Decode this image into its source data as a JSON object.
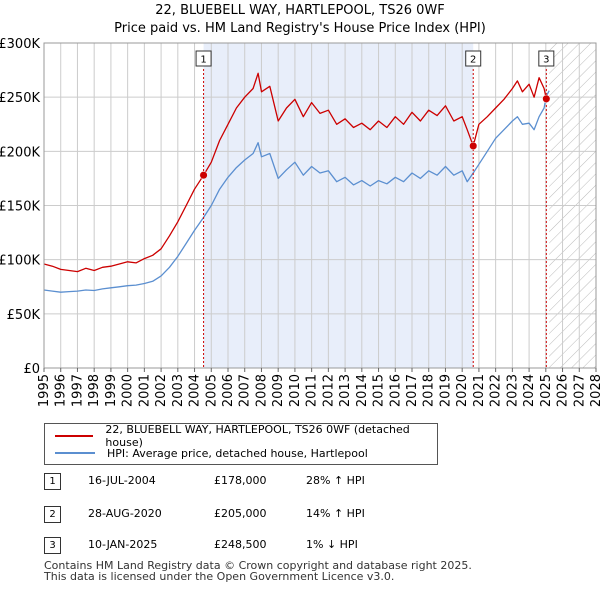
{
  "title": "22, BLUEBELL WAY, HARTLEPOOL, TS26 0WF",
  "subtitle": "Price paid vs. HM Land Registry's House Price Index (HPI)",
  "colors": {
    "property_line": "#cc0000",
    "hpi_line": "#5b8fd0",
    "shade": "#e8eefa",
    "future_hatch": "#bbbbbb",
    "marker_line": "#cc0000",
    "grid": "#cccccc"
  },
  "chart_data": {
    "type": "line",
    "xlim": [
      1995,
      2028
    ],
    "ylim": [
      0,
      300000
    ],
    "x_ticks": [
      "1995",
      "1996",
      "1997",
      "1998",
      "1999",
      "2000",
      "2001",
      "2002",
      "2003",
      "2004",
      "2005",
      "2006",
      "2007",
      "2008",
      "2009",
      "2010",
      "2011",
      "2012",
      "2013",
      "2014",
      "2015",
      "2016",
      "2017",
      "2018",
      "2019",
      "2020",
      "2021",
      "2022",
      "2023",
      "2024",
      "2025",
      "2026",
      "2027",
      "2028"
    ],
    "y_ticks": [
      "£0",
      "£50K",
      "£100K",
      "£150K",
      "£200K",
      "£250K",
      "£300K"
    ],
    "y_tick_values": [
      0,
      50000,
      100000,
      150000,
      200000,
      250000,
      300000
    ],
    "shaded_region": [
      2004.54,
      2020.66
    ],
    "future_from": 2025.2,
    "series": [
      {
        "name": "22, BLUEBELL WAY, HARTLEPOOL, TS26 0WF (detached house)",
        "color": "#cc0000",
        "x": [
          1995,
          1995.5,
          1996,
          1996.5,
          1997,
          1997.5,
          1998,
          1998.5,
          1999,
          1999.5,
          2000,
          2000.5,
          2001,
          2001.5,
          2002,
          2002.5,
          2003,
          2003.5,
          2004,
          2004.54,
          2005,
          2005.5,
          2006,
          2006.5,
          2007,
          2007.5,
          2007.8,
          2008,
          2008.5,
          2009,
          2009.5,
          2010,
          2010.5,
          2011,
          2011.5,
          2012,
          2012.5,
          2013,
          2013.5,
          2014,
          2014.5,
          2015,
          2015.5,
          2016,
          2016.5,
          2017,
          2017.5,
          2018,
          2018.5,
          2019,
          2019.5,
          2020,
          2020.3,
          2020.66,
          2021,
          2021.5,
          2022,
          2022.5,
          2023,
          2023.3,
          2023.6,
          2024,
          2024.3,
          2024.6,
          2024.9,
          2025.03,
          2025.2
        ],
        "y": [
          96000,
          94000,
          91000,
          90000,
          89000,
          92000,
          90000,
          93000,
          94000,
          96000,
          98000,
          97000,
          101000,
          104000,
          110000,
          122000,
          135000,
          150000,
          165000,
          178000,
          190000,
          210000,
          225000,
          240000,
          250000,
          258000,
          272000,
          255000,
          260000,
          228000,
          240000,
          248000,
          232000,
          245000,
          235000,
          238000,
          225000,
          230000,
          222000,
          226000,
          220000,
          228000,
          222000,
          232000,
          225000,
          236000,
          228000,
          238000,
          233000,
          242000,
          228000,
          232000,
          220000,
          205000,
          225000,
          232000,
          240000,
          248000,
          258000,
          265000,
          255000,
          262000,
          250000,
          268000,
          258000,
          248500,
          247000
        ]
      },
      {
        "name": "HPI: Average price, detached house, Hartlepool",
        "color": "#5b8fd0",
        "x": [
          1995,
          1995.5,
          1996,
          1996.5,
          1997,
          1997.5,
          1998,
          1998.5,
          1999,
          1999.5,
          2000,
          2000.5,
          2001,
          2001.5,
          2002,
          2002.5,
          2003,
          2003.5,
          2004,
          2004.54,
          2005,
          2005.5,
          2006,
          2006.5,
          2007,
          2007.5,
          2007.8,
          2008,
          2008.5,
          2009,
          2009.5,
          2010,
          2010.5,
          2011,
          2011.5,
          2012,
          2012.5,
          2013,
          2013.5,
          2014,
          2014.5,
          2015,
          2015.5,
          2016,
          2016.5,
          2017,
          2017.5,
          2018,
          2018.5,
          2019,
          2019.5,
          2020,
          2020.3,
          2020.66,
          2021,
          2021.5,
          2022,
          2022.5,
          2023,
          2023.3,
          2023.6,
          2024,
          2024.3,
          2024.6,
          2024.9,
          2025.03,
          2025.2
        ],
        "y": [
          72000,
          71000,
          70000,
          70500,
          71000,
          72000,
          71500,
          73000,
          74000,
          75000,
          76000,
          76500,
          78000,
          80000,
          85000,
          93000,
          103000,
          115000,
          127000,
          139000,
          150000,
          165000,
          176000,
          185000,
          192000,
          198000,
          208000,
          195000,
          198000,
          175000,
          183000,
          190000,
          178000,
          186000,
          180000,
          182000,
          172000,
          176000,
          169000,
          173000,
          168000,
          173000,
          170000,
          176000,
          172000,
          180000,
          175000,
          182000,
          178000,
          186000,
          178000,
          182000,
          172000,
          180000,
          188000,
          200000,
          212000,
          220000,
          228000,
          232000,
          225000,
          226000,
          220000,
          232000,
          240000,
          251000,
          256000
        ]
      }
    ],
    "sales": [
      {
        "label": "1",
        "x": 2004.54,
        "y": 178000
      },
      {
        "label": "2",
        "x": 2020.66,
        "y": 205000
      },
      {
        "label": "3",
        "x": 2025.03,
        "y": 248500
      }
    ]
  },
  "legend": {
    "property": "22, BLUEBELL WAY, HARTLEPOOL, TS26 0WF (detached house)",
    "hpi": "HPI: Average price, detached house, Hartlepool"
  },
  "sales_table": [
    {
      "num": "1",
      "date": "16-JUL-2004",
      "price": "£178,000",
      "hpi": "28% ↑ HPI"
    },
    {
      "num": "2",
      "date": "28-AUG-2020",
      "price": "£205,000",
      "hpi": "14% ↑ HPI"
    },
    {
      "num": "3",
      "date": "10-JAN-2025",
      "price": "£248,500",
      "hpi": "1% ↓ HPI"
    }
  ],
  "footer": {
    "line1": "Contains HM Land Registry data © Crown copyright and database right 2025.",
    "line2": "This data is licensed under the Open Government Licence v3.0."
  }
}
